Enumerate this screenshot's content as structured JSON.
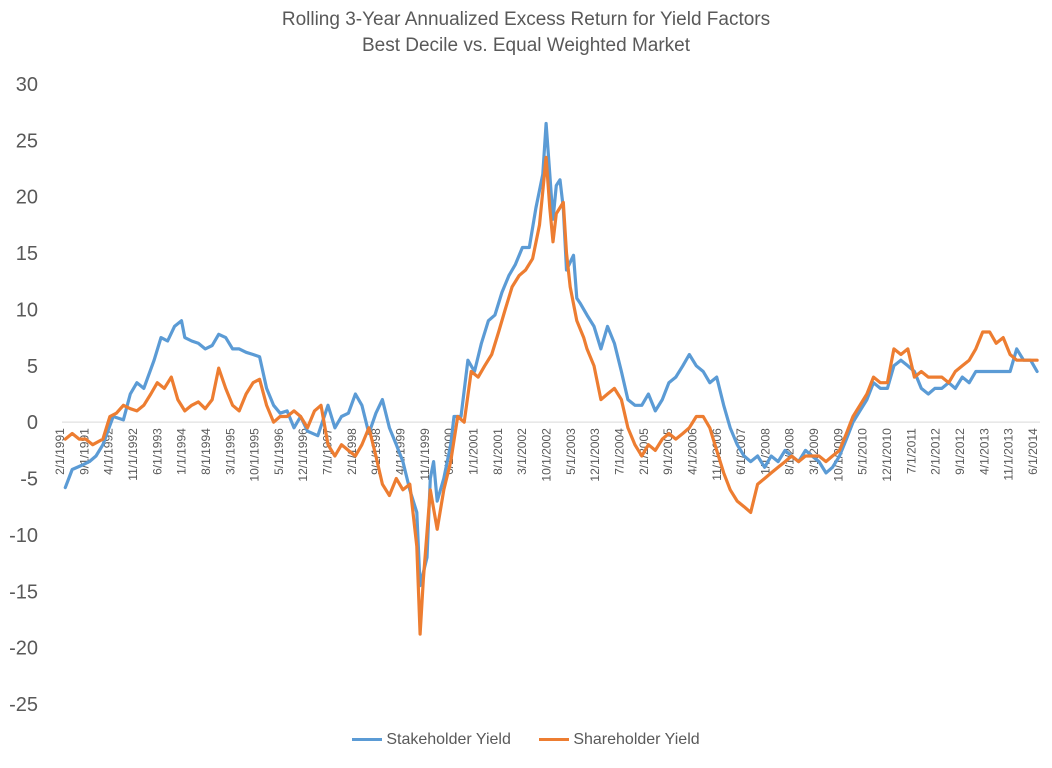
{
  "chart_data": {
    "type": "line",
    "title": "Rolling 3-Year Annualized Excess Return for Yield Factors",
    "subtitle": "Best Decile vs. Equal Weighted Market",
    "ylim": [
      -25,
      30
    ],
    "y_ticks": [
      30,
      25,
      20,
      15,
      10,
      5,
      0,
      -5,
      -10,
      -15,
      -20,
      -25
    ],
    "x_tick_labels": [
      "2/1/1991",
      "9/1/1991",
      "4/1/1992",
      "11/1/1992",
      "6/1/1993",
      "1/1/1994",
      "8/1/1994",
      "3/1/1995",
      "10/1/1995",
      "5/1/1996",
      "12/1/1996",
      "7/1/1997",
      "2/1/1998",
      "9/1/1998",
      "4/1/1999",
      "11/1/1999",
      "6/1/2000",
      "1/1/2001",
      "8/1/2001",
      "3/1/2002",
      "10/1/2002",
      "5/1/2003",
      "12/1/2003",
      "7/1/2004",
      "2/1/2005",
      "9/1/2005",
      "4/1/2006",
      "11/1/2006",
      "6/1/2007",
      "1/1/2008",
      "8/1/2008",
      "3/1/2009",
      "10/1/2009",
      "5/1/2010",
      "12/1/2010",
      "7/1/2011",
      "2/1/2012",
      "9/1/2012",
      "4/1/2013",
      "11/1/2013",
      "6/1/2014"
    ],
    "series": [
      {
        "name": "Stakeholder Yield",
        "color": "#5B9BD5",
        "points": [
          [
            1991.08,
            -5.8
          ],
          [
            1991.25,
            -4.2
          ],
          [
            1991.5,
            -3.8
          ],
          [
            1991.67,
            -3.5
          ],
          [
            1991.83,
            -3.0
          ],
          [
            1992.0,
            -2.0
          ],
          [
            1992.25,
            0.5
          ],
          [
            1992.5,
            0.2
          ],
          [
            1992.67,
            2.5
          ],
          [
            1992.83,
            3.5
          ],
          [
            1993.0,
            3.0
          ],
          [
            1993.25,
            5.5
          ],
          [
            1993.42,
            7.5
          ],
          [
            1993.58,
            7.2
          ],
          [
            1993.75,
            8.5
          ],
          [
            1993.92,
            9.0
          ],
          [
            1994.0,
            7.5
          ],
          [
            1994.17,
            7.2
          ],
          [
            1994.33,
            7.0
          ],
          [
            1994.5,
            6.5
          ],
          [
            1994.67,
            6.8
          ],
          [
            1994.83,
            7.8
          ],
          [
            1995.0,
            7.5
          ],
          [
            1995.17,
            6.5
          ],
          [
            1995.33,
            6.5
          ],
          [
            1995.5,
            6.2
          ],
          [
            1995.67,
            6.0
          ],
          [
            1995.83,
            5.8
          ],
          [
            1996.0,
            3.0
          ],
          [
            1996.17,
            1.5
          ],
          [
            1996.33,
            0.8
          ],
          [
            1996.5,
            1.0
          ],
          [
            1996.67,
            -0.5
          ],
          [
            1996.83,
            0.5
          ],
          [
            1997.0,
            -0.8
          ],
          [
            1997.25,
            -1.2
          ],
          [
            1997.5,
            1.5
          ],
          [
            1997.67,
            -0.5
          ],
          [
            1997.83,
            0.5
          ],
          [
            1998.0,
            0.8
          ],
          [
            1998.17,
            2.5
          ],
          [
            1998.33,
            1.5
          ],
          [
            1998.5,
            -1.0
          ],
          [
            1998.67,
            0.8
          ],
          [
            1998.83,
            2.0
          ],
          [
            1999.0,
            -0.5
          ],
          [
            1999.17,
            -2.0
          ],
          [
            1999.33,
            -3.5
          ],
          [
            1999.5,
            -6.0
          ],
          [
            1999.67,
            -8.0
          ],
          [
            1999.75,
            -14.5
          ],
          [
            1999.92,
            -12.0
          ],
          [
            2000.0,
            -5.0
          ],
          [
            2000.08,
            -3.5
          ],
          [
            2000.17,
            -7.0
          ],
          [
            2000.33,
            -5.0
          ],
          [
            2000.5,
            -2.0
          ],
          [
            2000.58,
            0.5
          ],
          [
            2000.75,
            0.5
          ],
          [
            2000.92,
            5.5
          ],
          [
            2001.08,
            4.5
          ],
          [
            2001.25,
            7.0
          ],
          [
            2001.42,
            9.0
          ],
          [
            2001.58,
            9.5
          ],
          [
            2001.75,
            11.5
          ],
          [
            2001.92,
            13.0
          ],
          [
            2002.08,
            14.0
          ],
          [
            2002.25,
            15.5
          ],
          [
            2002.42,
            15.5
          ],
          [
            2002.58,
            19.0
          ],
          [
            2002.75,
            22.0
          ],
          [
            2002.83,
            26.5
          ],
          [
            2002.92,
            22.0
          ],
          [
            2003.0,
            18.0
          ],
          [
            2003.08,
            21.0
          ],
          [
            2003.17,
            21.5
          ],
          [
            2003.25,
            19.0
          ],
          [
            2003.33,
            13.5
          ],
          [
            2003.5,
            14.8
          ],
          [
            2003.58,
            11.0
          ],
          [
            2003.67,
            10.5
          ],
          [
            2003.83,
            9.5
          ],
          [
            2004.0,
            8.5
          ],
          [
            2004.17,
            6.5
          ],
          [
            2004.33,
            8.5
          ],
          [
            2004.5,
            7.0
          ],
          [
            2004.67,
            4.5
          ],
          [
            2004.83,
            2.0
          ],
          [
            2005.0,
            1.5
          ],
          [
            2005.17,
            1.5
          ],
          [
            2005.33,
            2.5
          ],
          [
            2005.5,
            1.0
          ],
          [
            2005.67,
            2.0
          ],
          [
            2005.83,
            3.5
          ],
          [
            2006.0,
            4.0
          ],
          [
            2006.17,
            5.0
          ],
          [
            2006.33,
            6.0
          ],
          [
            2006.5,
            5.0
          ],
          [
            2006.67,
            4.5
          ],
          [
            2006.83,
            3.5
          ],
          [
            2007.0,
            4.0
          ],
          [
            2007.17,
            1.5
          ],
          [
            2007.33,
            -0.5
          ],
          [
            2007.5,
            -2.0
          ],
          [
            2007.67,
            -3.0
          ],
          [
            2007.83,
            -3.5
          ],
          [
            2008.0,
            -3.0
          ],
          [
            2008.17,
            -4.0
          ],
          [
            2008.33,
            -3.0
          ],
          [
            2008.5,
            -3.5
          ],
          [
            2008.67,
            -2.5
          ],
          [
            2008.83,
            -3.0
          ],
          [
            2009.0,
            -3.5
          ],
          [
            2009.17,
            -2.5
          ],
          [
            2009.33,
            -3.0
          ],
          [
            2009.5,
            -3.5
          ],
          [
            2009.67,
            -4.5
          ],
          [
            2009.83,
            -4.0
          ],
          [
            2010.0,
            -3.0
          ],
          [
            2010.17,
            -1.5
          ],
          [
            2010.33,
            0.0
          ],
          [
            2010.5,
            1.0
          ],
          [
            2010.67,
            2.0
          ],
          [
            2010.83,
            3.5
          ],
          [
            2011.0,
            3.0
          ],
          [
            2011.17,
            3.0
          ],
          [
            2011.33,
            5.0
          ],
          [
            2011.5,
            5.5
          ],
          [
            2011.67,
            5.0
          ],
          [
            2011.83,
            4.5
          ],
          [
            2012.0,
            3.0
          ],
          [
            2012.17,
            2.5
          ],
          [
            2012.33,
            3.0
          ],
          [
            2012.5,
            3.0
          ],
          [
            2012.67,
            3.5
          ],
          [
            2012.83,
            3.0
          ],
          [
            2013.0,
            4.0
          ],
          [
            2013.17,
            3.5
          ],
          [
            2013.33,
            4.5
          ],
          [
            2013.5,
            4.5
          ],
          [
            2013.67,
            4.5
          ],
          [
            2013.83,
            4.5
          ],
          [
            2014.0,
            4.5
          ],
          [
            2014.17,
            4.5
          ],
          [
            2014.33,
            6.5
          ],
          [
            2014.5,
            5.5
          ],
          [
            2014.67,
            5.5
          ],
          [
            2014.83,
            4.5
          ]
        ]
      },
      {
        "name": "Shareholder Yield",
        "color": "#ED7D31",
        "points": [
          [
            1991.08,
            -1.5
          ],
          [
            1991.25,
            -1.0
          ],
          [
            1991.42,
            -1.5
          ],
          [
            1991.58,
            -1.5
          ],
          [
            1991.75,
            -2.0
          ],
          [
            1992.0,
            -1.5
          ],
          [
            1992.17,
            0.5
          ],
          [
            1992.33,
            0.8
          ],
          [
            1992.5,
            1.5
          ],
          [
            1992.67,
            1.2
          ],
          [
            1992.83,
            1.0
          ],
          [
            1993.0,
            1.5
          ],
          [
            1993.17,
            2.5
          ],
          [
            1993.33,
            3.5
          ],
          [
            1993.5,
            3.0
          ],
          [
            1993.67,
            4.0
          ],
          [
            1993.83,
            2.0
          ],
          [
            1994.0,
            1.0
          ],
          [
            1994.17,
            1.5
          ],
          [
            1994.33,
            1.8
          ],
          [
            1994.5,
            1.2
          ],
          [
            1994.67,
            2.0
          ],
          [
            1994.83,
            4.8
          ],
          [
            1995.0,
            3.0
          ],
          [
            1995.17,
            1.5
          ],
          [
            1995.33,
            1.0
          ],
          [
            1995.5,
            2.5
          ],
          [
            1995.67,
            3.5
          ],
          [
            1995.83,
            3.8
          ],
          [
            1996.0,
            1.5
          ],
          [
            1996.17,
            0.0
          ],
          [
            1996.33,
            0.5
          ],
          [
            1996.5,
            0.5
          ],
          [
            1996.67,
            1.0
          ],
          [
            1996.83,
            0.5
          ],
          [
            1997.0,
            -0.5
          ],
          [
            1997.17,
            1.0
          ],
          [
            1997.33,
            1.5
          ],
          [
            1997.5,
            -2.0
          ],
          [
            1997.67,
            -3.0
          ],
          [
            1997.83,
            -2.0
          ],
          [
            1998.0,
            -2.5
          ],
          [
            1998.17,
            -3.0
          ],
          [
            1998.33,
            -2.0
          ],
          [
            1998.5,
            -0.5
          ],
          [
            1998.67,
            -3.0
          ],
          [
            1998.83,
            -5.5
          ],
          [
            1999.0,
            -6.5
          ],
          [
            1999.17,
            -5.0
          ],
          [
            1999.33,
            -6.0
          ],
          [
            1999.5,
            -5.5
          ],
          [
            1999.67,
            -11.0
          ],
          [
            1999.75,
            -18.8
          ],
          [
            1999.83,
            -14.0
          ],
          [
            2000.0,
            -6.0
          ],
          [
            2000.17,
            -9.5
          ],
          [
            2000.33,
            -6.0
          ],
          [
            2000.5,
            -3.5
          ],
          [
            2000.67,
            0.5
          ],
          [
            2000.83,
            0.0
          ],
          [
            2001.0,
            4.5
          ],
          [
            2001.17,
            4.0
          ],
          [
            2001.33,
            5.0
          ],
          [
            2001.5,
            6.0
          ],
          [
            2001.67,
            8.0
          ],
          [
            2001.83,
            10.0
          ],
          [
            2002.0,
            12.0
          ],
          [
            2002.17,
            13.0
          ],
          [
            2002.33,
            13.5
          ],
          [
            2002.5,
            14.5
          ],
          [
            2002.67,
            17.5
          ],
          [
            2002.83,
            23.5
          ],
          [
            2002.92,
            19.0
          ],
          [
            2003.0,
            16.0
          ],
          [
            2003.08,
            18.5
          ],
          [
            2003.25,
            19.5
          ],
          [
            2003.33,
            15.0
          ],
          [
            2003.42,
            12.0
          ],
          [
            2003.58,
            9.0
          ],
          [
            2003.75,
            7.5
          ],
          [
            2003.83,
            6.5
          ],
          [
            2004.0,
            5.0
          ],
          [
            2004.17,
            2.0
          ],
          [
            2004.33,
            2.5
          ],
          [
            2004.5,
            3.0
          ],
          [
            2004.67,
            2.0
          ],
          [
            2004.83,
            -0.5
          ],
          [
            2005.0,
            -2.0
          ],
          [
            2005.17,
            -3.0
          ],
          [
            2005.33,
            -2.0
          ],
          [
            2005.5,
            -2.5
          ],
          [
            2005.67,
            -1.5
          ],
          [
            2005.83,
            -1.0
          ],
          [
            2006.0,
            -1.5
          ],
          [
            2006.17,
            -1.0
          ],
          [
            2006.33,
            -0.5
          ],
          [
            2006.5,
            0.5
          ],
          [
            2006.67,
            0.5
          ],
          [
            2006.83,
            -0.5
          ],
          [
            2007.0,
            -2.5
          ],
          [
            2007.17,
            -4.5
          ],
          [
            2007.33,
            -6.0
          ],
          [
            2007.5,
            -7.0
          ],
          [
            2007.67,
            -7.5
          ],
          [
            2007.83,
            -8.0
          ],
          [
            2008.0,
            -5.5
          ],
          [
            2008.17,
            -5.0
          ],
          [
            2008.33,
            -4.5
          ],
          [
            2008.5,
            -4.0
          ],
          [
            2008.67,
            -3.5
          ],
          [
            2008.83,
            -3.0
          ],
          [
            2009.0,
            -3.5
          ],
          [
            2009.17,
            -3.0
          ],
          [
            2009.33,
            -3.0
          ],
          [
            2009.5,
            -3.0
          ],
          [
            2009.67,
            -3.5
          ],
          [
            2009.83,
            -3.0
          ],
          [
            2010.0,
            -2.5
          ],
          [
            2010.17,
            -1.0
          ],
          [
            2010.33,
            0.5
          ],
          [
            2010.5,
            1.5
          ],
          [
            2010.67,
            2.5
          ],
          [
            2010.83,
            4.0
          ],
          [
            2011.0,
            3.5
          ],
          [
            2011.17,
            3.5
          ],
          [
            2011.33,
            6.5
          ],
          [
            2011.5,
            6.0
          ],
          [
            2011.67,
            6.5
          ],
          [
            2011.83,
            4.0
          ],
          [
            2012.0,
            4.5
          ],
          [
            2012.17,
            4.0
          ],
          [
            2012.33,
            4.0
          ],
          [
            2012.5,
            4.0
          ],
          [
            2012.67,
            3.5
          ],
          [
            2012.83,
            4.5
          ],
          [
            2013.0,
            5.0
          ],
          [
            2013.17,
            5.5
          ],
          [
            2013.33,
            6.5
          ],
          [
            2013.5,
            8.0
          ],
          [
            2013.67,
            8.0
          ],
          [
            2013.83,
            7.0
          ],
          [
            2014.0,
            7.5
          ],
          [
            2014.17,
            6.0
          ],
          [
            2014.33,
            5.5
          ],
          [
            2014.5,
            5.5
          ],
          [
            2014.67,
            5.5
          ],
          [
            2014.83,
            5.5
          ]
        ]
      }
    ],
    "grid": false,
    "legend": "bottom-center"
  }
}
